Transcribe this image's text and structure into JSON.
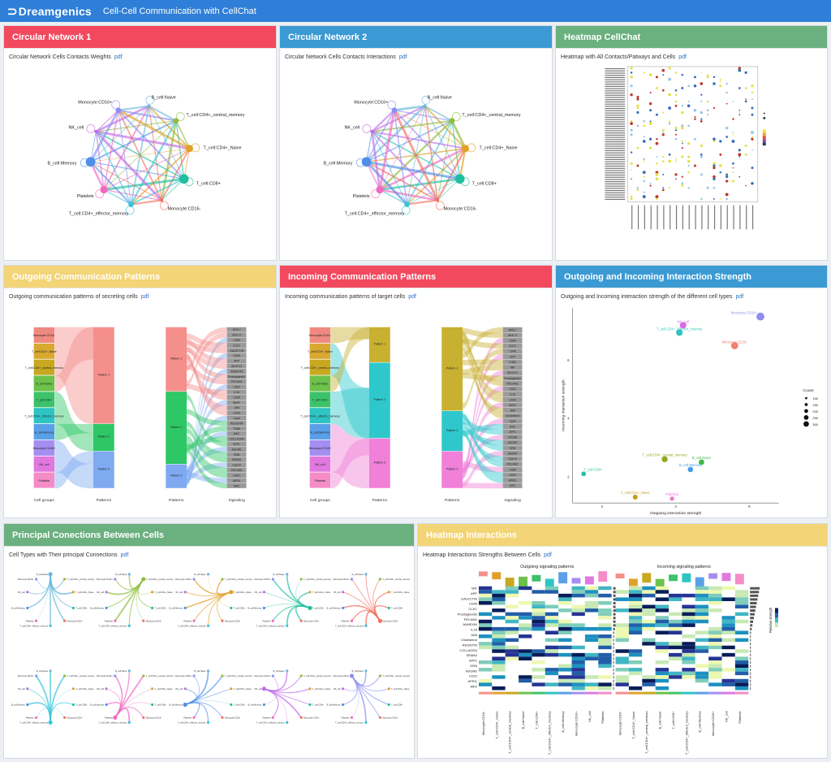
{
  "app": {
    "brand": "Dreamgenics",
    "title": "Cell-Cell Communication with CellChat"
  },
  "colors": {
    "red": "#f2495e",
    "blue": "#3b9ad3",
    "green": "#6bb07f",
    "yellow": "#f3d476",
    "topbar": "#2f7fd8"
  },
  "cell_types": [
    "B_cell:Naive",
    "T_cell:CD4+_central_memory",
    "T_cell:CD4+_Naive",
    "T_cell:CD8+",
    "Monocyte:CD16-",
    "T_cell:CD4+_effector_memory",
    "Platelets",
    "B_cell:Memory",
    "NK_cell",
    "Monocyte:CD16+"
  ],
  "panels": {
    "circ1": {
      "header": "Circular Network 1",
      "subtitle": "Circular Network Cells Contacts Weights",
      "link": "pdf"
    },
    "circ2": {
      "header": "Circular Network 2",
      "subtitle": "Circular Network Cells Contacts Interactions",
      "link": "pdf"
    },
    "heat1": {
      "header": "Heatmap CellChat",
      "subtitle": "Heatmap with All Contacts/Patways and Cells",
      "link": "pdf"
    },
    "outgoing": {
      "header": "Outgoing Communication Patterns",
      "subtitle": "Outgoing communication patterns of secreting cells",
      "link": "pdf",
      "cell_groups": [
        "Monocyte:CD16-",
        "T_cell:CD4+_Naive",
        "T_cell:CD4+_central_memory",
        "B_cell:Naive",
        "T_cell:CD8+",
        "T_cell:CD4+_effector_memory",
        "B_cell:Memory",
        "Monocyte:CD16+",
        "NK_cell",
        "Platelets"
      ],
      "patterns": [
        "Pattern 1",
        "Pattern 2",
        "Pattern 3"
      ],
      "signaling": [
        "MHC-I",
        "MHC-II",
        "CD99",
        "CLEC",
        "GALECTIN",
        "CD45",
        "APP",
        "SELPLG",
        "ANNEXIN",
        "Prostaglandin",
        "PECAM1",
        "CD22",
        "IL16",
        "CD46",
        "BAFF",
        "JAM",
        "CD40",
        "CypA",
        "RESISTIN",
        "THBS",
        "BAG",
        "COLLAGEN",
        "SPP1",
        "ADGRE",
        "GRN",
        "SEMA4",
        "CysLTs",
        "PECAM1",
        "LAIR1",
        "APRIL",
        "MPZ"
      ],
      "axis": [
        "Cell groups",
        "Patterns",
        "Patterns",
        "Signaling"
      ]
    },
    "incoming": {
      "header": "Incoming Communication Patterns",
      "subtitle": "Incoming communication patterns of target cells",
      "link": "pdf",
      "cell_groups": [
        "Monocyte:CD16-",
        "T_cell:CD4+_Naive",
        "T_cell:CD4+_central_memory",
        "B_cell:Naive",
        "T_cell:CD8+",
        "T_cell:CD4+_effector_memory",
        "B_cell:Memory",
        "Monocyte:CD16+",
        "NK_cell",
        "Platelets"
      ],
      "patterns": [
        "Pattern 1",
        "Pattern 2",
        "Pattern 3"
      ],
      "signaling": [
        "MHC-I",
        "MHC-II",
        "CD99",
        "CLEC",
        "CD45",
        "APP",
        "ICAM",
        "MIF",
        "SELPLG",
        "Prostaglandin",
        "PECAM1",
        "CD22",
        "IL16",
        "CD40",
        "BAFF",
        "JAM",
        "Cholesterol",
        "CypA",
        "BAG",
        "SPP1",
        "GP1BA",
        "ADGRE",
        "GRN",
        "SEMA4",
        "CysLTs",
        "PECAM1",
        "CD86",
        "LAIR1",
        "APRIL",
        "MPZ"
      ],
      "axis": [
        "Cell groups",
        "Patterns",
        "Patterns",
        "Signaling"
      ]
    },
    "strength": {
      "header": "Outgoing and Incoming Interaction Strength",
      "subtitle": "Outgoing and Incoming interaction strength of the different cell types",
      "link": "pdf"
    },
    "principal": {
      "header": "Principal Conections Between Cells",
      "subtitle": "Cell Types with Their principal Connections",
      "link": "pdf"
    },
    "heat2": {
      "header": "Heatmap Interactions",
      "subtitle": "Heatmap Interactions Strengths Between Cells",
      "link": "pdf",
      "left_title": "Outgoing signaling patterns",
      "right_title": "Incoming signaling patterns",
      "legend_title": "Relative strength",
      "columns": [
        "Monocyte:CD16-",
        "T_cell:CD4+_Naive",
        "T_cell:CD4+_central_memory",
        "B_cell:Naive",
        "T_cell:CD8+",
        "T_cell:CD4+_effector_memory",
        "B_cell:Memory",
        "Monocyte:CD16+",
        "NK_cell",
        "Platelets"
      ],
      "row_labels": [
        "MIF",
        "APP",
        "GALECTIN",
        "CD45",
        "CLEC",
        "Prostaglandin",
        "PECAM1",
        "ANNEXIN",
        "IL16",
        "JAM",
        "Cholesterol",
        "RESISTIN",
        "COLLAGEN",
        "SEMA4",
        "SPP1",
        "GRN",
        "ADGRE",
        "CD22",
        "APRIL",
        "MPZ"
      ]
    }
  },
  "chart_data": {
    "type": "scatter",
    "xlabel": "Outgoing interaction strength",
    "ylabel": "Incoming interaction strength",
    "legend_title": "Count",
    "legend_sizes": [
      "100",
      "150",
      "200",
      "250",
      "300"
    ],
    "x_ticks": [
      "2",
      "4",
      "6"
    ],
    "y_ticks": [
      "2",
      "4",
      "6"
    ],
    "xlim": [
      1.2,
      6.8
    ],
    "ylim": [
      1.1,
      7.8
    ],
    "points": [
      {
        "label": "Monocyte:CD16+",
        "x": 6.3,
        "y": 7.5,
        "size": 300,
        "color": "#8e8ef0"
      },
      {
        "label": "NK_cell",
        "x": 4.2,
        "y": 7.2,
        "size": 230,
        "color": "#d86be6"
      },
      {
        "label": "T_cell:CD4+_effector_memory",
        "x": 4.1,
        "y": 6.95,
        "size": 230,
        "color": "#2fc3c0"
      },
      {
        "label": "Monocyte:CD16-",
        "x": 5.6,
        "y": 6.5,
        "size": 260,
        "color": "#f08070"
      },
      {
        "label": "T_cell:CD4+_central_memory",
        "x": 3.7,
        "y": 2.6,
        "size": 200,
        "color": "#8faa22"
      },
      {
        "label": "B_cell:Naive",
        "x": 4.7,
        "y": 2.5,
        "size": 180,
        "color": "#3fb84c"
      },
      {
        "label": "B_cell:Memory",
        "x": 4.4,
        "y": 2.25,
        "size": 170,
        "color": "#3f9ce8"
      },
      {
        "label": "T_cell:CD8+",
        "x": 1.5,
        "y": 2.1,
        "size": 140,
        "color": "#28c0a0"
      },
      {
        "label": "T_cell:CD4+_Naive",
        "x": 2.9,
        "y": 1.3,
        "size": 150,
        "color": "#c8a020"
      },
      {
        "label": "Platelets",
        "x": 3.9,
        "y": 1.25,
        "size": 120,
        "color": "#f07ac8"
      }
    ]
  }
}
